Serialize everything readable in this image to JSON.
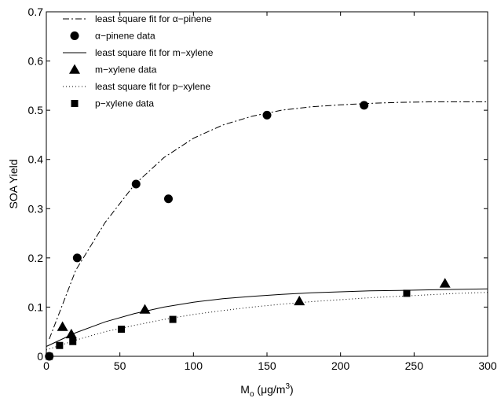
{
  "chart_data": {
    "type": "scatter",
    "title": "",
    "xlabel": {
      "main": "M",
      "sub": "o",
      "suffix": " (μg/m",
      "sup": "3",
      "close": ")"
    },
    "ylabel": "SOA Yield",
    "xlim": [
      0,
      300
    ],
    "ylim": [
      0,
      0.7
    ],
    "xticks": [
      0,
      50,
      100,
      150,
      200,
      250,
      300
    ],
    "yticks": [
      0,
      0.1,
      0.2,
      0.3,
      0.4,
      0.5,
      0.6,
      0.7
    ],
    "xtick_labels": [
      "0",
      "50",
      "100",
      "150",
      "200",
      "250",
      "300"
    ],
    "ytick_labels": [
      "0",
      "0.1",
      "0.2",
      "0.3",
      "0.4",
      "0.5",
      "0.6",
      "0.7"
    ],
    "grid": false,
    "legend_position": "top-left",
    "series": [
      {
        "name": "least square fit for α−pinene",
        "kind": "line",
        "line_style": "dashdot",
        "x": [
          2,
          20,
          40,
          60,
          80,
          100,
          120,
          140,
          160,
          180,
          200,
          220,
          240,
          260,
          280,
          300
        ],
        "y": [
          0.035,
          0.175,
          0.272,
          0.349,
          0.404,
          0.443,
          0.47,
          0.488,
          0.5,
          0.507,
          0.511,
          0.514,
          0.516,
          0.517,
          0.517,
          0.517
        ]
      },
      {
        "name": "α−pinene data",
        "kind": "points",
        "marker": "circle",
        "x": [
          2,
          21,
          61,
          83,
          150,
          216
        ],
        "y": [
          0.0,
          0.2,
          0.35,
          0.32,
          0.49,
          0.51
        ]
      },
      {
        "name": "least square fit for m−xylene",
        "kind": "line",
        "line_style": "solid",
        "x": [
          0,
          20,
          40,
          60,
          80,
          100,
          120,
          140,
          160,
          180,
          200,
          220,
          240,
          260,
          280,
          300
        ],
        "y": [
          0.02,
          0.048,
          0.07,
          0.087,
          0.1,
          0.11,
          0.117,
          0.122,
          0.126,
          0.129,
          0.131,
          0.133,
          0.134,
          0.135,
          0.136,
          0.137
        ]
      },
      {
        "name": "m−xylene data",
        "kind": "points",
        "marker": "triangle",
        "x": [
          11,
          17,
          67,
          172,
          271
        ],
        "y": [
          0.06,
          0.045,
          0.095,
          0.112,
          0.148
        ]
      },
      {
        "name": "least square fit for p−xylene",
        "kind": "line",
        "line_style": "dotted",
        "x": [
          0,
          20,
          40,
          60,
          80,
          100,
          120,
          140,
          160,
          180,
          200,
          220,
          240,
          260,
          280,
          300
        ],
        "y": [
          0.013,
          0.033,
          0.05,
          0.063,
          0.075,
          0.085,
          0.093,
          0.1,
          0.106,
          0.111,
          0.115,
          0.119,
          0.122,
          0.125,
          0.128,
          0.13
        ]
      },
      {
        "name": "p−xylene data",
        "kind": "points",
        "marker": "square",
        "x": [
          2,
          9,
          18,
          51,
          86,
          245
        ],
        "y": [
          0.0,
          0.022,
          0.03,
          0.055,
          0.075,
          0.128
        ]
      }
    ]
  }
}
